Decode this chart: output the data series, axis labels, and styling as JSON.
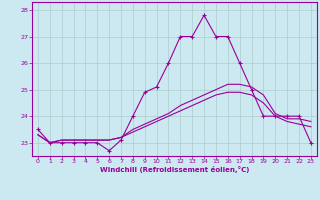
{
  "xlabel": "Windchill (Refroidissement éolien,°C)",
  "background_color": "#cce8f0",
  "line_color": "#990099",
  "grid_color": "#aacccc",
  "xlim": [
    -0.5,
    23.5
  ],
  "ylim": [
    22.5,
    28.3
  ],
  "yticks": [
    23,
    24,
    25,
    26,
    27,
    28
  ],
  "xticks": [
    0,
    1,
    2,
    3,
    4,
    5,
    6,
    7,
    8,
    9,
    10,
    11,
    12,
    13,
    14,
    15,
    16,
    17,
    18,
    19,
    20,
    21,
    22,
    23
  ],
  "line1_x": [
    0,
    1,
    2,
    3,
    4,
    5,
    6,
    7,
    8,
    9,
    10,
    11,
    12,
    13,
    14,
    15,
    16,
    17,
    18,
    19,
    20,
    21,
    22,
    23
  ],
  "line1_y": [
    23.5,
    23.0,
    23.0,
    23.0,
    23.0,
    23.0,
    22.7,
    23.1,
    24.0,
    24.9,
    25.1,
    26.0,
    27.0,
    27.0,
    27.8,
    27.0,
    27.0,
    26.0,
    25.0,
    24.0,
    24.0,
    24.0,
    24.0,
    23.0
  ],
  "line2_x": [
    0,
    1,
    2,
    3,
    4,
    5,
    6,
    7,
    8,
    9,
    10,
    11,
    12,
    13,
    14,
    15,
    16,
    17,
    18,
    19,
    20,
    21,
    22,
    23
  ],
  "line2_y": [
    23.3,
    23.0,
    23.1,
    23.1,
    23.1,
    23.1,
    23.1,
    23.2,
    23.5,
    23.7,
    23.9,
    24.1,
    24.4,
    24.6,
    24.8,
    25.0,
    25.2,
    25.2,
    25.1,
    24.8,
    24.1,
    23.9,
    23.9,
    23.8
  ],
  "line3_x": [
    0,
    1,
    2,
    3,
    4,
    5,
    6,
    7,
    8,
    9,
    10,
    11,
    12,
    13,
    14,
    15,
    16,
    17,
    18,
    19,
    20,
    21,
    22,
    23
  ],
  "line3_y": [
    23.3,
    23.0,
    23.1,
    23.1,
    23.1,
    23.1,
    23.1,
    23.2,
    23.4,
    23.6,
    23.8,
    24.0,
    24.2,
    24.4,
    24.6,
    24.8,
    24.9,
    24.9,
    24.8,
    24.5,
    24.0,
    23.8,
    23.7,
    23.6
  ]
}
